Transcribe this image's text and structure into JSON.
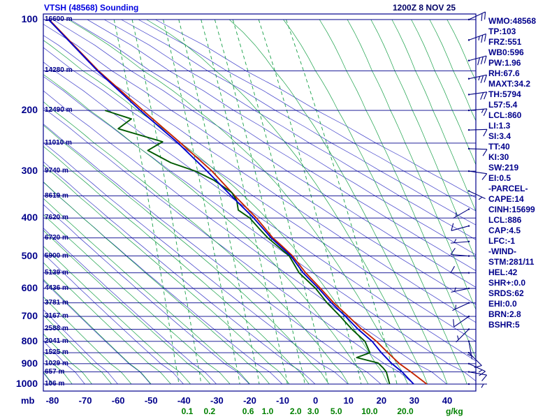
{
  "header": {
    "title": "VTSH (48568) Sounding",
    "datetime": "1200Z  8 NOV 25"
  },
  "axes": {
    "pressure_unit": "mb",
    "pressure_ticks": [
      100,
      200,
      300,
      400,
      500,
      600,
      700,
      800,
      900,
      1000
    ],
    "temp_ticks": [
      -80,
      -70,
      -60,
      -50,
      -40,
      -30,
      -20,
      -10,
      0,
      10,
      20,
      30,
      40
    ],
    "mixing_unit": "g/kg"
  },
  "stats_panel": {
    "lines": [
      "WMO:48568",
      "TP:103",
      "FRZ:551",
      "WB0:596",
      "PW:1.96",
      "RH:67.6",
      "MAXT:34.2",
      "TH:5794",
      "L57:5.4",
      "LCL:860",
      "LI:1.3",
      "SI:3.4",
      "TT:40",
      "KI:30",
      "SW:219",
      "EI:0.5",
      "-PARCEL-",
      "CAPE:14",
      "CINH:15699",
      "LCL:886",
      "CAP:4.5",
      "LFC:-1",
      "-WIND-",
      "STM:281/11",
      "HEL:42",
      "SHR+:0.0",
      "SRDS:62",
      "EHI:0.0",
      "BRN:2.8",
      "BSHR:5"
    ]
  },
  "colors": {
    "border": "#00008b",
    "isobar": "#00008b",
    "dry_adiabat": "#3a3ac8",
    "moist_adiabat": "#18a048",
    "mixing_line": "#18a048",
    "barb": "#000080"
  },
  "chart_data": {
    "type": "line",
    "title": "VTSH (48568) Sounding",
    "valid_time": "1200Z 8 NOV 25",
    "x_axis": {
      "ticks_degC": [
        -80,
        -70,
        -60,
        -50,
        -40,
        -30,
        -20,
        -10,
        0,
        10,
        20,
        30,
        40
      ]
    },
    "y_axis": {
      "ticks_mb": [
        100,
        200,
        300,
        400,
        500,
        600,
        700,
        800,
        900,
        1000
      ],
      "scale": "height-linear"
    },
    "levels_mb": [
      100,
      150,
      200,
      250,
      300,
      350,
      400,
      450,
      500,
      550,
      600,
      650,
      700,
      750,
      800,
      850,
      900,
      950,
      1000
    ],
    "heights_m": [
      16600,
      14280,
      12490,
      11010,
      9740,
      8619,
      7620,
      6720,
      5900,
      5139,
      4436,
      3781,
      3167,
      2588,
      2041,
      1525,
      1029,
      657,
      106
    ],
    "mixing_ratio_lines_gkg": [
      0.1,
      0.2,
      0.6,
      1.0,
      2.0,
      3.0,
      5.0,
      10.0,
      20.0
    ],
    "series": [
      {
        "name": "temperature",
        "color": "#c42400",
        "points": [
          [
            100,
            -81
          ],
          [
            150,
            -66
          ],
          [
            200,
            -52.5
          ],
          [
            250,
            -41
          ],
          [
            300,
            -31.5
          ],
          [
            350,
            -24.5
          ],
          [
            400,
            -18
          ],
          [
            425,
            -15.5
          ],
          [
            450,
            -13
          ],
          [
            470,
            -10.5
          ],
          [
            500,
            -7
          ],
          [
            550,
            -3
          ],
          [
            600,
            1.5
          ],
          [
            650,
            5.5
          ],
          [
            700,
            10
          ],
          [
            750,
            14
          ],
          [
            800,
            18.5
          ],
          [
            850,
            22
          ],
          [
            900,
            25.5
          ],
          [
            950,
            29
          ],
          [
            1000,
            33.8
          ]
        ]
      },
      {
        "name": "dewpoint",
        "color": "#005a00",
        "points": [
          [
            200,
            -64
          ],
          [
            213,
            -56
          ],
          [
            228,
            -60
          ],
          [
            248,
            -46.5
          ],
          [
            263,
            -51
          ],
          [
            285,
            -44
          ],
          [
            300,
            -36.5
          ],
          [
            318,
            -31
          ],
          [
            343,
            -25.5
          ],
          [
            360,
            -24
          ],
          [
            382,
            -23.5
          ],
          [
            400,
            -20
          ],
          [
            428,
            -17
          ],
          [
            450,
            -14.5
          ],
          [
            500,
            -8
          ],
          [
            550,
            -5
          ],
          [
            600,
            0
          ],
          [
            650,
            3.5
          ],
          [
            700,
            7.5
          ],
          [
            750,
            11
          ],
          [
            800,
            15
          ],
          [
            850,
            16.5
          ],
          [
            872,
            12.5
          ],
          [
            897,
            19
          ],
          [
            925,
            20.5
          ],
          [
            950,
            21.5
          ],
          [
            1000,
            22.5
          ]
        ]
      },
      {
        "name": "wetbulb",
        "color": "#0000cc",
        "points": [
          [
            100,
            -81.2
          ],
          [
            150,
            -66.3
          ],
          [
            200,
            -53.3
          ],
          [
            250,
            -41.8
          ],
          [
            300,
            -33
          ],
          [
            350,
            -25.6
          ],
          [
            400,
            -18.8
          ],
          [
            450,
            -13.5
          ],
          [
            500,
            -7.5
          ],
          [
            550,
            -3.8
          ],
          [
            600,
            0.9
          ],
          [
            650,
            4.8
          ],
          [
            700,
            9.1
          ],
          [
            750,
            12.9
          ],
          [
            800,
            17.2
          ],
          [
            850,
            20
          ],
          [
            900,
            23.2
          ],
          [
            950,
            26.3
          ],
          [
            1000,
            29.8
          ]
        ]
      }
    ],
    "wind_barbs": [
      [
        100,
        20,
        65
      ],
      [
        120,
        25,
        70
      ],
      [
        140,
        30,
        75
      ],
      [
        160,
        25,
        78
      ],
      [
        180,
        20,
        82
      ],
      [
        200,
        15,
        85
      ],
      [
        230,
        10,
        88
      ],
      [
        260,
        10,
        92
      ],
      [
        300,
        10,
        98
      ],
      [
        340,
        5,
        115
      ],
      [
        380,
        5,
        240
      ],
      [
        420,
        10,
        255
      ],
      [
        460,
        5,
        265
      ],
      [
        500,
        10,
        275
      ],
      [
        550,
        10,
        270
      ],
      [
        600,
        5,
        258
      ],
      [
        650,
        5,
        245
      ],
      [
        700,
        10,
        235
      ],
      [
        750,
        5,
        225
      ],
      [
        800,
        5,
        170
      ],
      [
        850,
        10,
        135
      ],
      [
        900,
        15,
        115
      ],
      [
        950,
        10,
        100
      ],
      [
        1000,
        5,
        90
      ]
    ]
  }
}
